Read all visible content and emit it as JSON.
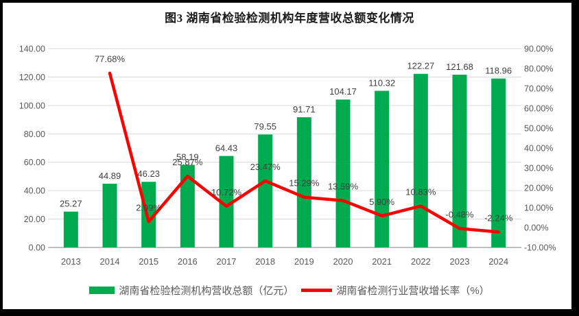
{
  "figure": {
    "border_color": "#000000",
    "background": "#FFFFFF"
  },
  "chart_data": {
    "type": "combo-bar-line",
    "title": "图3 湖南省检验检测机构年度营收总额变化情况",
    "categories": [
      "2013",
      "2014",
      "2015",
      "2016",
      "2017",
      "2018",
      "2019",
      "2020",
      "2021",
      "2022",
      "2023",
      "2024"
    ],
    "series": [
      {
        "name": "湖南省检验检测机构营收总额（亿元）",
        "type": "bar",
        "color": "#00AB50",
        "axis": "left",
        "values": [
          25.27,
          44.89,
          46.23,
          58.19,
          64.43,
          79.55,
          91.71,
          104.17,
          110.32,
          122.27,
          121.68,
          118.96
        ],
        "labels": [
          "25.27",
          "44.89",
          "46.23",
          "58.19",
          "64.43",
          "79.55",
          "91.71",
          "104.17",
          "110.32",
          "122.27",
          "121.68",
          "118.96"
        ]
      },
      {
        "name": "湖南省检测行业营收增长率（%）",
        "type": "line",
        "color": "#FF0000",
        "axis": "right",
        "values": [
          null,
          77.68,
          2.99,
          25.87,
          10.72,
          23.47,
          15.29,
          13.59,
          5.9,
          10.83,
          -0.48,
          -2.24
        ],
        "labels": [
          null,
          "77.68%",
          "2.99%",
          "25.87%",
          "10.72%",
          "23.47%",
          "15.29%",
          "13.59%",
          "5.90%",
          "10.83%",
          "-0.48%",
          "-2.24%"
        ]
      }
    ],
    "left_axis": {
      "min": 0,
      "max": 140,
      "step": 20,
      "ticks": [
        "140.00",
        "120.00",
        "100.00",
        "80.00",
        "60.00",
        "40.00",
        "20.00",
        "0.00"
      ]
    },
    "right_axis": {
      "min": -10,
      "max": 90,
      "step": 10,
      "ticks": [
        "90.00%",
        "80.00%",
        "70.00%",
        "60.00%",
        "50.00%",
        "40.00%",
        "30.00%",
        "20.00%",
        "10.00%",
        "0.00%",
        "-10.00%"
      ]
    },
    "grid": true,
    "legend_position": "bottom",
    "grid_color": "#D9D9D9",
    "axis_line_color": "#BFBFBF",
    "text_colors": {
      "axis": "#595959",
      "data_label": "#404040",
      "title": "#1A1A1A"
    }
  }
}
